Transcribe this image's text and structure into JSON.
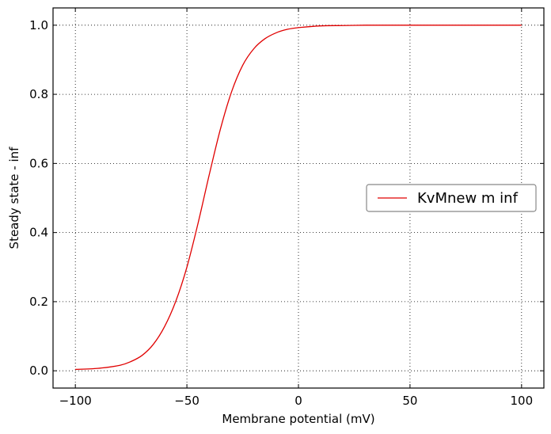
{
  "chart_data": {
    "type": "line",
    "title": "",
    "xlabel": "Membrane potential (mV)",
    "ylabel": "Steady state - inf",
    "xlim": [
      -110,
      110
    ],
    "ylim": [
      -0.05,
      1.05
    ],
    "xticks": [
      -100,
      -50,
      0,
      50,
      100
    ],
    "xtick_labels": [
      "−100",
      "−50",
      "0",
      "50",
      "100"
    ],
    "yticks": [
      0.0,
      0.2,
      0.4,
      0.6,
      0.8,
      1.0
    ],
    "ytick_labels": [
      "0.0",
      "0.2",
      "0.4",
      "0.6",
      "0.8",
      "1.0"
    ],
    "grid": true,
    "legend_position": "center-right",
    "series": [
      {
        "name": "KvMnew m inf",
        "color": "#e00000",
        "x": [
          -100,
          -90,
          -80,
          -75,
          -70,
          -65,
          -60,
          -55,
          -50,
          -45,
          -40,
          -35,
          -30,
          -25,
          -20,
          -15,
          -10,
          -5,
          0,
          10,
          20,
          30,
          40,
          50,
          60,
          70,
          80,
          90,
          100
        ],
        "y": [
          0.004,
          0.007,
          0.016,
          0.027,
          0.045,
          0.077,
          0.128,
          0.201,
          0.3,
          0.427,
          0.567,
          0.699,
          0.807,
          0.884,
          0.932,
          0.961,
          0.978,
          0.988,
          0.993,
          0.998,
          0.999,
          1.0,
          1.0,
          1.0,
          1.0,
          1.0,
          1.0,
          1.0,
          1.0
        ]
      }
    ]
  }
}
